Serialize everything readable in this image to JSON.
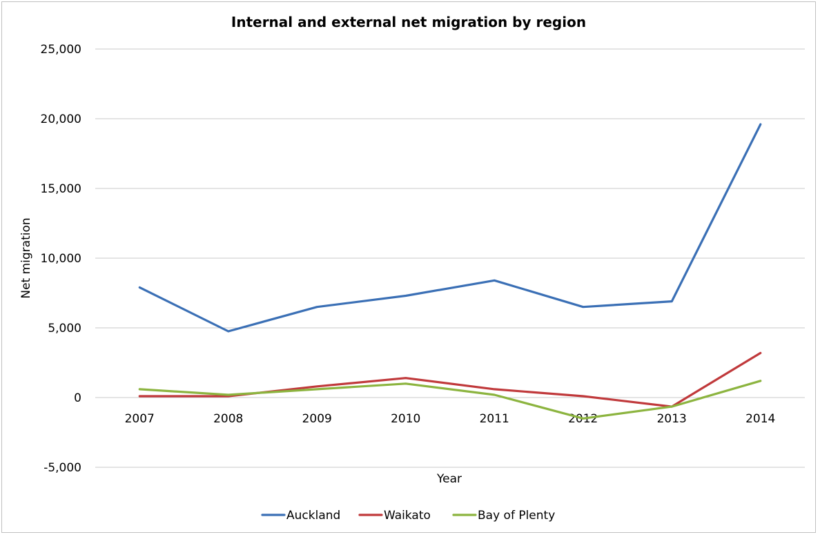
{
  "chart_data": {
    "type": "line",
    "title": "Internal and external net migration by region",
    "xlabel": "Year",
    "ylabel": "Net migration",
    "categories": [
      "2007",
      "2008",
      "2009",
      "2010",
      "2011",
      "2012",
      "2013",
      "2014"
    ],
    "ylim": [
      -5000,
      25000
    ],
    "yticks": [
      -5000,
      0,
      5000,
      10000,
      15000,
      20000,
      25000
    ],
    "ytick_labels": [
      "-5,000",
      "0",
      "5,000",
      "10,000",
      "15,000",
      "20,000",
      "25,000"
    ],
    "grid": true,
    "legend_position": "bottom",
    "series": [
      {
        "name": "Auckland",
        "color": "#3a6fb5",
        "values": [
          7900,
          4750,
          6500,
          7300,
          8400,
          6500,
          6900,
          19600
        ]
      },
      {
        "name": "Waikato",
        "color": "#c0393b",
        "values": [
          100,
          100,
          800,
          1400,
          600,
          100,
          -650,
          3200
        ]
      },
      {
        "name": "Bay of Plenty",
        "color": "#8cb43f",
        "values": [
          600,
          200,
          600,
          1000,
          200,
          -1500,
          -650,
          1200
        ]
      }
    ]
  }
}
